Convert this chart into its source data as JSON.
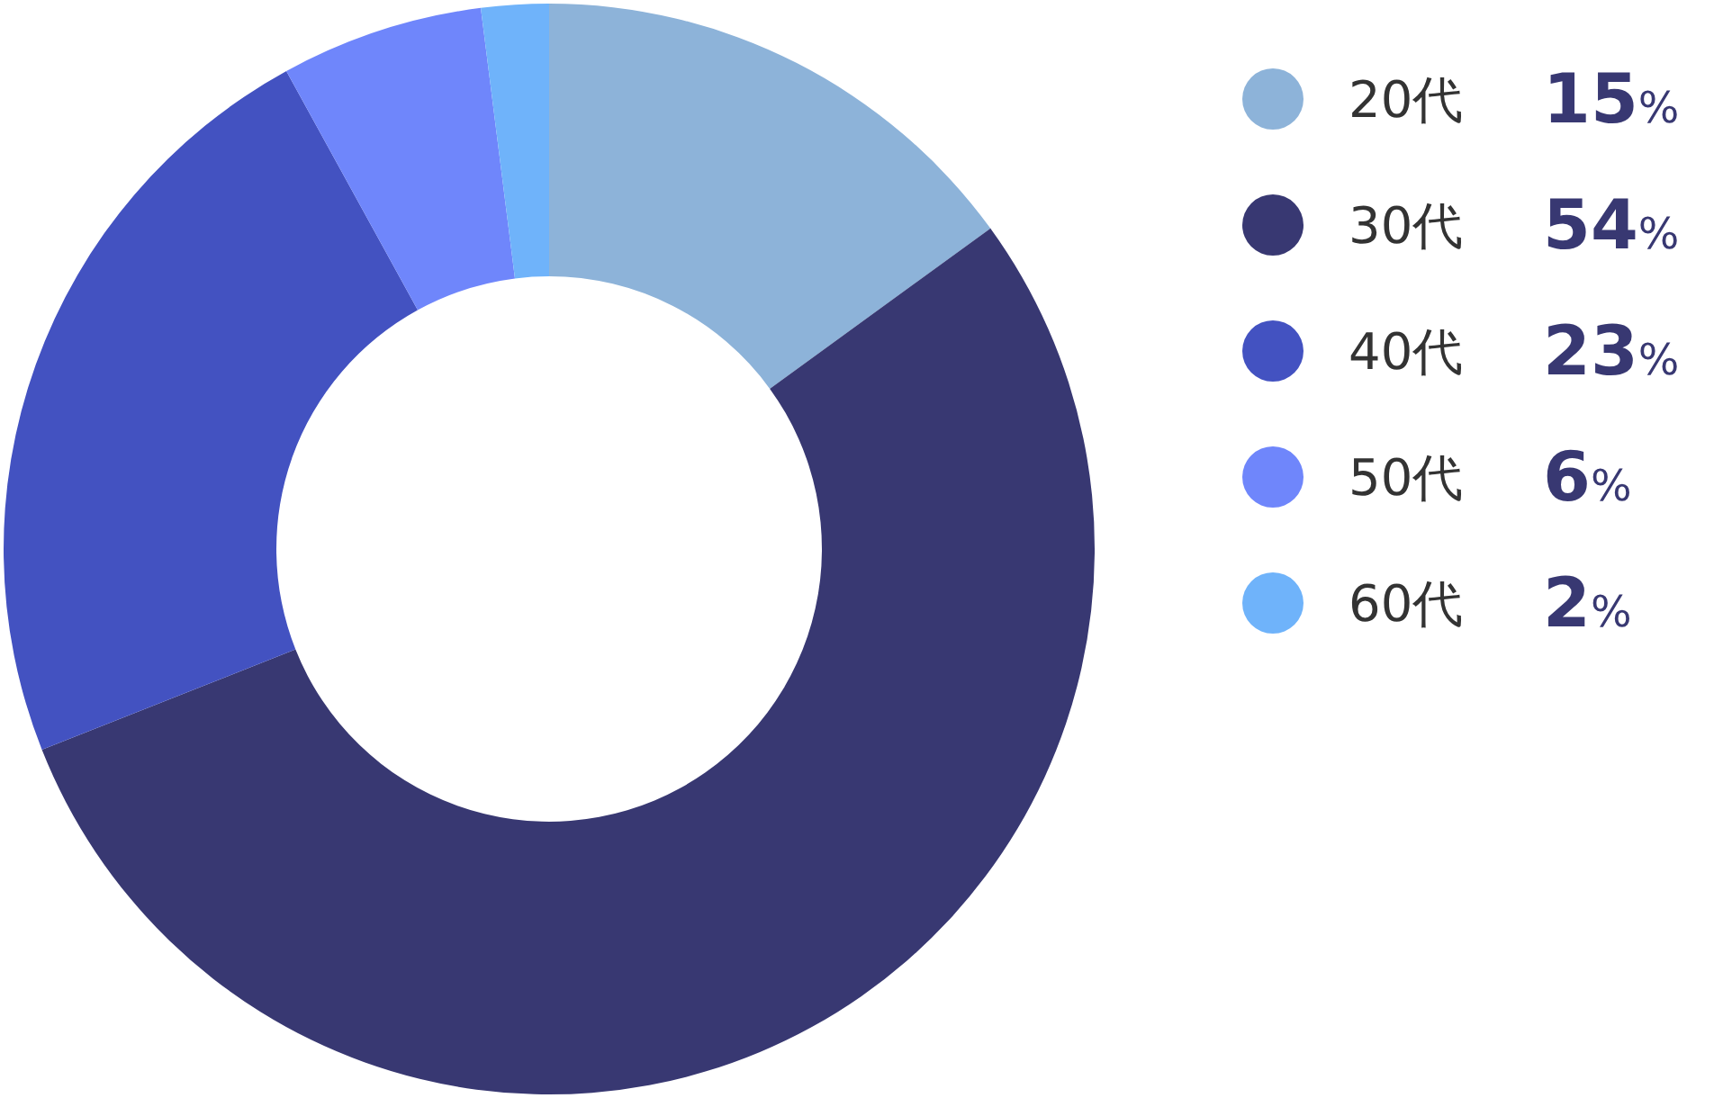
{
  "chart_data": {
    "type": "donut",
    "categories": [
      "20代",
      "30代",
      "40代",
      "50代",
      "60代"
    ],
    "values": [
      15,
      54,
      23,
      6,
      2
    ],
    "colors": [
      "#8db3d9",
      "#383872",
      "#4352c1",
      "#6f86fb",
      "#6fb3fa"
    ],
    "value_labels": [
      "15%",
      "54%",
      "23%",
      "6%",
      "2%"
    ],
    "legend": "right"
  }
}
